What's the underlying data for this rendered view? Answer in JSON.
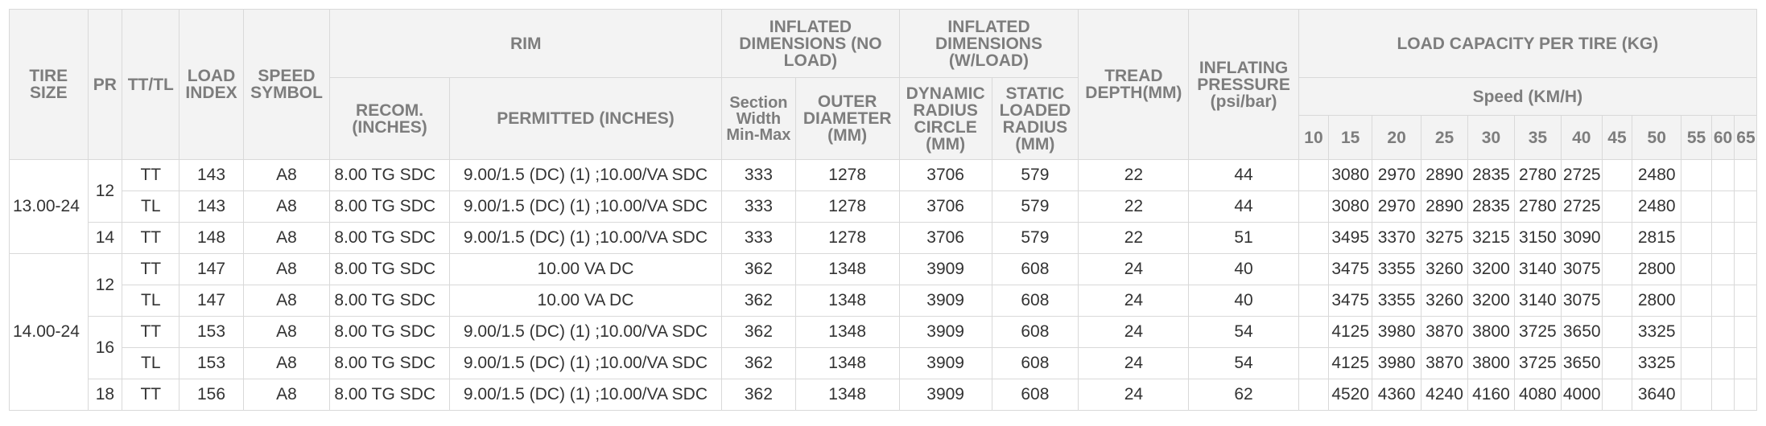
{
  "headers": {
    "tire_size": "TIRE SIZE",
    "pr": "PR",
    "tt_tl": "TT/TL",
    "load_index": "LOAD INDEX",
    "speed_symbol": "SPEED SYMBOL",
    "rim": "RIM",
    "inflated_no_load": "INFLATED DIMENSIONS (NO LOAD)",
    "inflated_w_load": "INFLATED DIMENSIONS (W/LOAD)",
    "tread_depth": "TREAD DEPTH(MM)",
    "inflating_pressure": "INFLATING PRESSURE (psi/bar)",
    "load_capacity": "LOAD CAPACITY PER TIRE (KG)",
    "recom": "RECOM. (INCHES)",
    "permitted": "PERMITTED (INCHES)",
    "section_width": "Section Width Min-Max",
    "outer_diameter": "OUTER DIAMETER (MM)",
    "dynamic_radius": "DYNAMIC RADIUS CIRCLE (MM)",
    "static_radius": "STATIC LOADED RADIUS (MM)",
    "speed_kmh": "Speed (KM/H)",
    "speeds": [
      "10",
      "15",
      "20",
      "25",
      "30",
      "35",
      "40",
      "45",
      "50",
      "55",
      "60",
      "65"
    ]
  },
  "groups": [
    {
      "size": "13.00-24",
      "pr_groups": [
        {
          "pr": "12",
          "rows": [
            {
              "type": "TT",
              "load_index": "143",
              "speed_symbol": "A8",
              "recom": "8.00 TG SDC",
              "permitted": "9.00/1.5 (DC) (1) ;10.00/VA SDC",
              "section_width": "333",
              "outer_diameter": "1278",
              "dynamic_radius": "3706",
              "static_radius": "579",
              "tread_depth": "22",
              "pressure": "44",
              "loads": [
                "",
                "3080",
                "2970",
                "2890",
                "2835",
                "2780",
                "2725",
                "",
                "2480",
                "",
                "",
                ""
              ]
            },
            {
              "type": "TL",
              "load_index": "143",
              "speed_symbol": "A8",
              "recom": "8.00 TG SDC",
              "permitted": "9.00/1.5 (DC) (1) ;10.00/VA SDC",
              "section_width": "333",
              "outer_diameter": "1278",
              "dynamic_radius": "3706",
              "static_radius": "579",
              "tread_depth": "22",
              "pressure": "44",
              "loads": [
                "",
                "3080",
                "2970",
                "2890",
                "2835",
                "2780",
                "2725",
                "",
                "2480",
                "",
                "",
                ""
              ]
            }
          ]
        },
        {
          "pr": "14",
          "rows": [
            {
              "type": "TT",
              "load_index": "148",
              "speed_symbol": "A8",
              "recom": "8.00 TG SDC",
              "permitted": "9.00/1.5 (DC) (1) ;10.00/VA SDC",
              "section_width": "333",
              "outer_diameter": "1278",
              "dynamic_radius": "3706",
              "static_radius": "579",
              "tread_depth": "22",
              "pressure": "51",
              "loads": [
                "",
                "3495",
                "3370",
                "3275",
                "3215",
                "3150",
                "3090",
                "",
                "2815",
                "",
                "",
                ""
              ]
            }
          ]
        }
      ]
    },
    {
      "size": "14.00-24",
      "pr_groups": [
        {
          "pr": "12",
          "rows": [
            {
              "type": "TT",
              "load_index": "147",
              "speed_symbol": "A8",
              "recom": "8.00 TG SDC",
              "permitted": "10.00 VA DC",
              "section_width": "362",
              "outer_diameter": "1348",
              "dynamic_radius": "3909",
              "static_radius": "608",
              "tread_depth": "24",
              "pressure": "40",
              "loads": [
                "",
                "3475",
                "3355",
                "3260",
                "3200",
                "3140",
                "3075",
                "",
                "2800",
                "",
                "",
                ""
              ]
            },
            {
              "type": "TL",
              "load_index": "147",
              "speed_symbol": "A8",
              "recom": "8.00 TG SDC",
              "permitted": "10.00 VA DC",
              "section_width": "362",
              "outer_diameter": "1348",
              "dynamic_radius": "3909",
              "static_radius": "608",
              "tread_depth": "24",
              "pressure": "40",
              "loads": [
                "",
                "3475",
                "3355",
                "3260",
                "3200",
                "3140",
                "3075",
                "",
                "2800",
                "",
                "",
                ""
              ]
            }
          ]
        },
        {
          "pr": "16",
          "rows": [
            {
              "type": "TT",
              "load_index": "153",
              "speed_symbol": "A8",
              "recom": "8.00 TG SDC",
              "permitted": "9.00/1.5 (DC) (1) ;10.00/VA SDC",
              "section_width": "362",
              "outer_diameter": "1348",
              "dynamic_radius": "3909",
              "static_radius": "608",
              "tread_depth": "24",
              "pressure": "54",
              "loads": [
                "",
                "4125",
                "3980",
                "3870",
                "3800",
                "3725",
                "3650",
                "",
                "3325",
                "",
                "",
                ""
              ]
            },
            {
              "type": "TL",
              "load_index": "153",
              "speed_symbol": "A8",
              "recom": "8.00 TG SDC",
              "permitted": "9.00/1.5 (DC) (1) ;10.00/VA SDC",
              "section_width": "362",
              "outer_diameter": "1348",
              "dynamic_radius": "3909",
              "static_radius": "608",
              "tread_depth": "24",
              "pressure": "54",
              "loads": [
                "",
                "4125",
                "3980",
                "3870",
                "3800",
                "3725",
                "3650",
                "",
                "3325",
                "",
                "",
                ""
              ]
            }
          ]
        },
        {
          "pr": "18",
          "rows": [
            {
              "type": "TT",
              "load_index": "156",
              "speed_symbol": "A8",
              "recom": "8.00 TG SDC",
              "permitted": "9.00/1.5 (DC) (1) ;10.00/VA SDC",
              "section_width": "362",
              "outer_diameter": "1348",
              "dynamic_radius": "3909",
              "static_radius": "608",
              "tread_depth": "24",
              "pressure": "62",
              "loads": [
                "",
                "4520",
                "4360",
                "4240",
                "4160",
                "4080",
                "4000",
                "",
                "3640",
                "",
                "",
                ""
              ]
            }
          ]
        }
      ]
    }
  ]
}
